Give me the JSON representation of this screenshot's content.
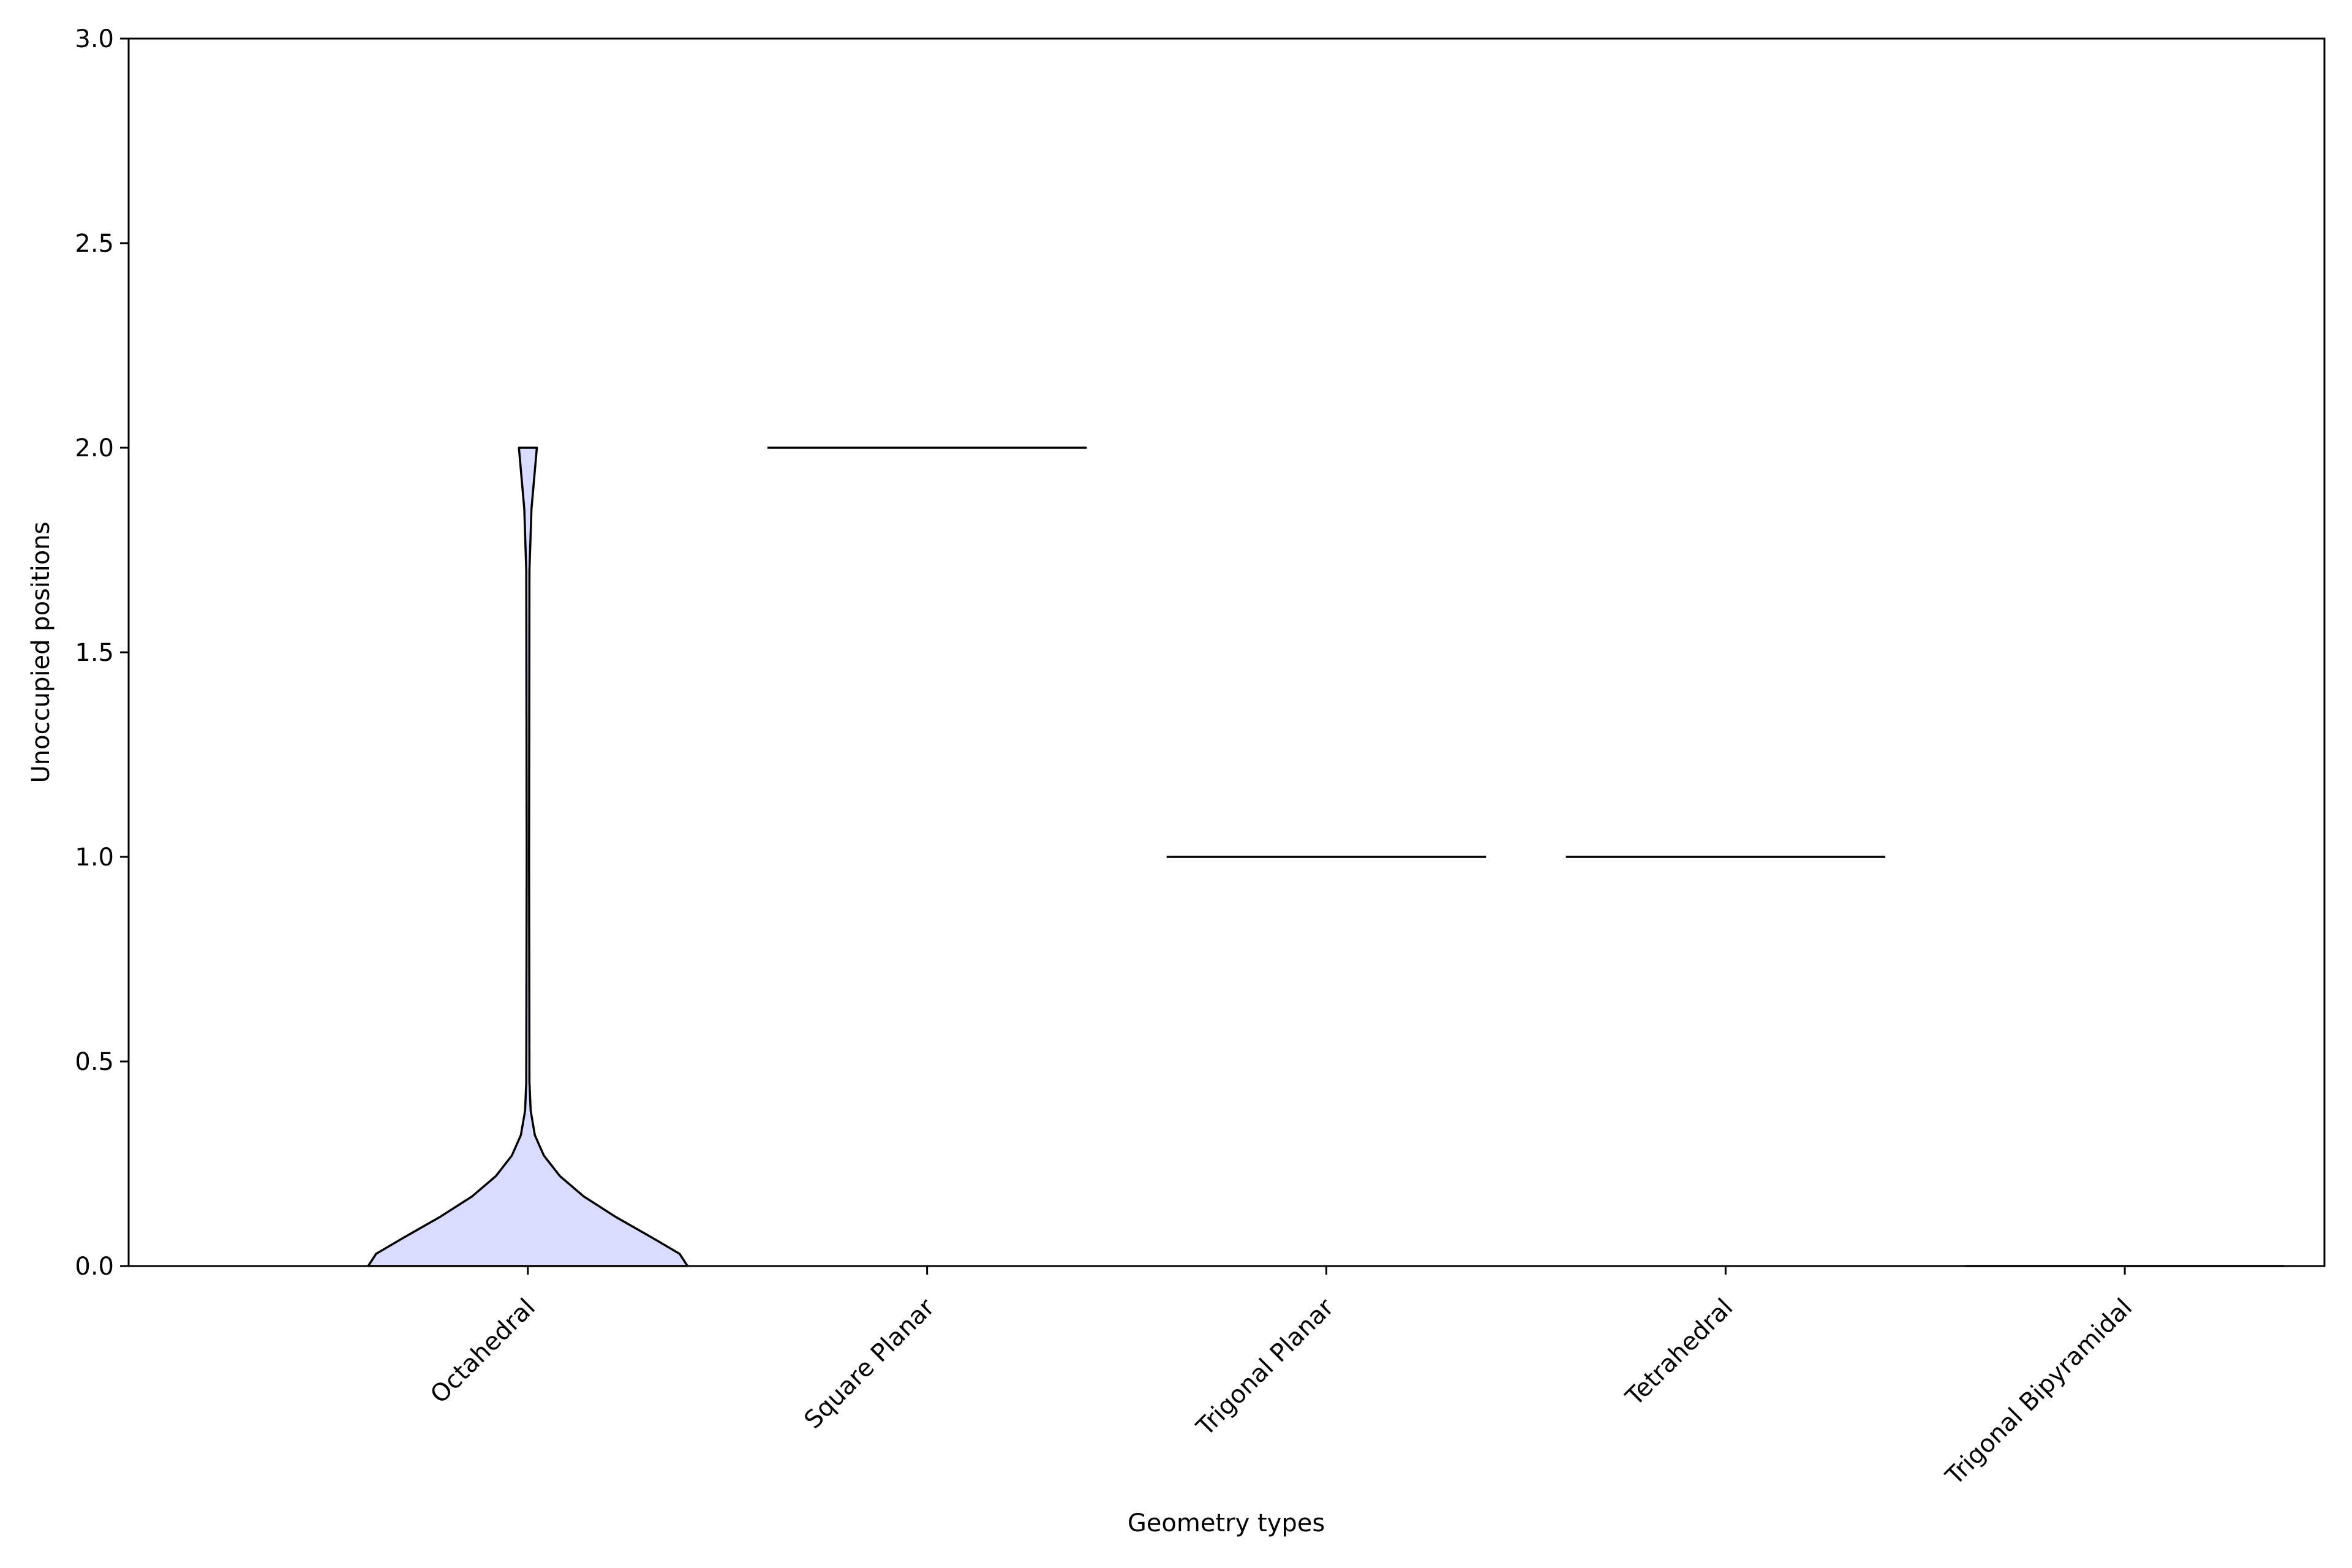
{
  "chart_data": {
    "type": "violin",
    "xlabel": "Geometry types",
    "ylabel": "Unoccupied positions",
    "categories": [
      "Octahedral",
      "Square Planar",
      "Trigonal Planar",
      "Tetrahedral",
      "Trigonal Bipyramidal"
    ],
    "ylim": [
      0,
      3
    ],
    "yticks": [
      "0.0",
      "0.5",
      "1.0",
      "1.5",
      "2.0",
      "2.5",
      "3.0"
    ],
    "grid": false,
    "fill_color": "#d9dcff",
    "edge_color": "#000000",
    "violins": [
      {
        "category": "Octahedral",
        "profile": [
          {
            "y": 0.0,
            "w": 0.8
          },
          {
            "y": 0.03,
            "w": 0.76
          },
          {
            "y": 0.07,
            "w": 0.62
          },
          {
            "y": 0.12,
            "w": 0.44
          },
          {
            "y": 0.17,
            "w": 0.28
          },
          {
            "y": 0.22,
            "w": 0.16
          },
          {
            "y": 0.27,
            "w": 0.08
          },
          {
            "y": 0.32,
            "w": 0.035
          },
          {
            "y": 0.38,
            "w": 0.014
          },
          {
            "y": 0.45,
            "w": 0.008
          },
          {
            "y": 1.0,
            "w": 0.006
          },
          {
            "y": 1.7,
            "w": 0.008
          },
          {
            "y": 1.85,
            "w": 0.018
          },
          {
            "y": 2.0,
            "w": 0.045
          }
        ]
      },
      {
        "category": "Square Planar",
        "flat_at": 2.0,
        "width": 0.8
      },
      {
        "category": "Trigonal Planar",
        "flat_at": 1.0,
        "width": 0.8
      },
      {
        "category": "Tetrahedral",
        "flat_at": 1.0,
        "width": 0.8
      },
      {
        "category": "Trigonal Bipyramidal",
        "flat_at": 0.0,
        "width": 0.8
      }
    ]
  }
}
